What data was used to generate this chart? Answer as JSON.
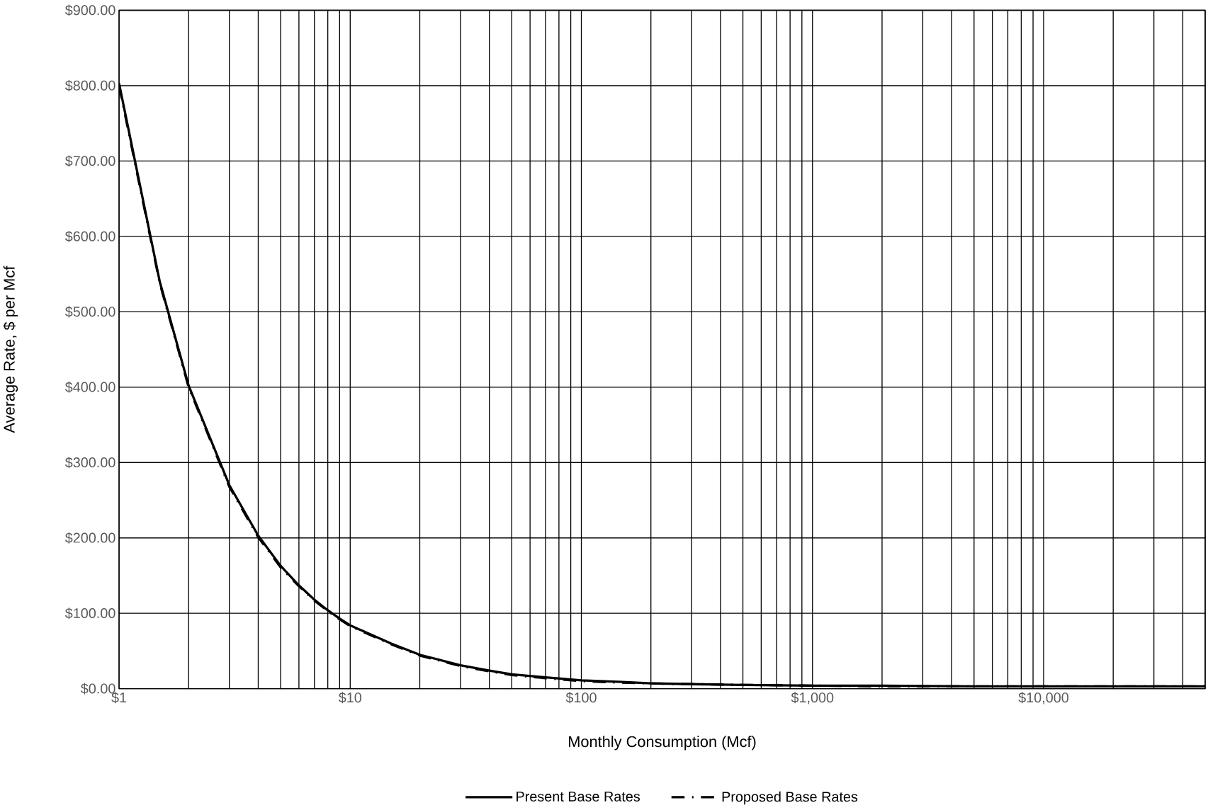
{
  "chart_data": {
    "type": "line",
    "xlabel": "Monthly Consumption (Mcf)",
    "ylabel": "Average Rate, $ per Mcf",
    "x": [
      1,
      1.5,
      2,
      3,
      4,
      5,
      6,
      7,
      8,
      9,
      10,
      15,
      20,
      30,
      40,
      50,
      70,
      100,
      150,
      200,
      300,
      500,
      1000,
      2000,
      5000,
      10000,
      20000,
      50000
    ],
    "series": [
      {
        "name": "Present Base Rates",
        "color": "#000000",
        "line_style": "solid",
        "values": [
          803,
          540,
          402,
          270,
          203,
          163,
          137,
          118,
          104,
          93,
          84,
          60,
          45,
          31,
          24,
          19,
          15,
          11,
          9,
          7,
          6,
          5,
          4,
          4,
          3,
          3,
          3,
          3
        ]
      },
      {
        "name": "Proposed Base Rates",
        "color": "#000000",
        "line_style": "dashed",
        "values": [
          800,
          538,
          400,
          268,
          201,
          161,
          136,
          117,
          103,
          92,
          83,
          59,
          44,
          30,
          23,
          18,
          14,
          10,
          8,
          7,
          6,
          5,
          4,
          3,
          3,
          3,
          3,
          3
        ]
      }
    ],
    "log": "x",
    "xlim": [
      1,
      50000
    ],
    "xticks": [
      {
        "value": 1,
        "label": "$1"
      },
      {
        "value": 10,
        "label": "$10"
      },
      {
        "value": 100,
        "label": "$100"
      },
      {
        "value": 1000,
        "label": "$1,000"
      },
      {
        "value": 10000,
        "label": "$10,000"
      }
    ],
    "ylim": [
      0,
      900
    ],
    "yticks": [
      {
        "value": 0,
        "label": "$0.00"
      },
      {
        "value": 100,
        "label": "$100.00"
      },
      {
        "value": 200,
        "label": "$200.00"
      },
      {
        "value": 300,
        "label": "$300.00"
      },
      {
        "value": 400,
        "label": "$400.00"
      },
      {
        "value": 500,
        "label": "$500.00"
      },
      {
        "value": 600,
        "label": "$600.00"
      },
      {
        "value": 700,
        "label": "$700.00"
      },
      {
        "value": 800,
        "label": "$800.00"
      },
      {
        "value": 900,
        "label": "$900.00"
      }
    ],
    "grid": true,
    "legend": "bottom"
  }
}
